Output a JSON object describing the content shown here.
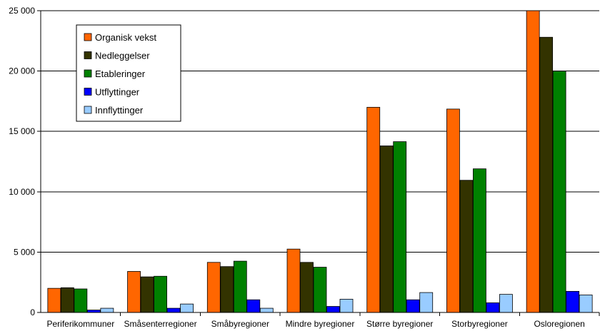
{
  "chart_data": {
    "type": "bar",
    "title": "",
    "xlabel": "",
    "ylabel": "",
    "categories": [
      "Periferikommuner",
      "Småsenterregioner",
      "Småbyregioner",
      "Mindre byregioner",
      "Større byregioner",
      "Storbyregioner",
      "Osloregionen"
    ],
    "ylim": [
      0,
      25000
    ],
    "yticks": [
      0,
      5000,
      10000,
      15000,
      20000,
      25000
    ],
    "ytick_labels": [
      "0",
      "5 000",
      "10 000",
      "15 000",
      "20 000",
      "25 000"
    ],
    "grid": true,
    "legend_position": "top-left",
    "series": [
      {
        "name": "Organisk vekst",
        "color": "#FF6600",
        "values": [
          2000,
          3400,
          4150,
          5250,
          17000,
          16850,
          25000
        ]
      },
      {
        "name": "Nedleggelser",
        "color": "#333300",
        "values": [
          2050,
          2950,
          3800,
          4150,
          13800,
          10950,
          22800
        ]
      },
      {
        "name": "Etableringer",
        "color": "#008000",
        "values": [
          1950,
          3000,
          4250,
          3750,
          14150,
          11900,
          20000
        ]
      },
      {
        "name": "Utflyttinger",
        "color": "#0000FF",
        "values": [
          200,
          350,
          1050,
          500,
          1050,
          800,
          1750
        ]
      },
      {
        "name": "Innflyttinger",
        "color": "#99CCFF",
        "values": [
          350,
          700,
          350,
          1100,
          1650,
          1500,
          1450
        ]
      }
    ]
  }
}
